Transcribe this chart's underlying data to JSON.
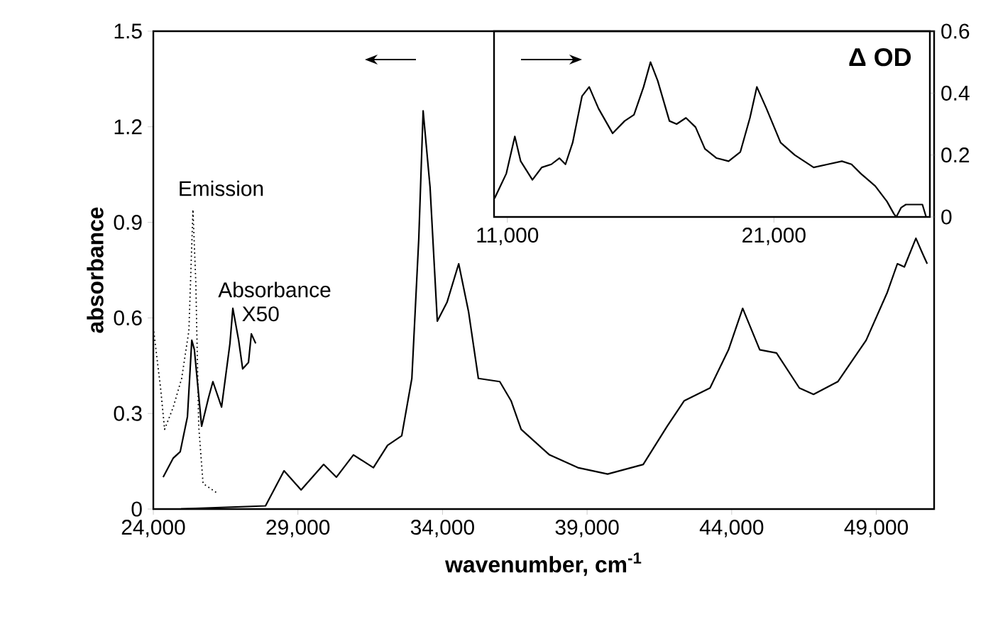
{
  "chart_data": [
    {
      "type": "line",
      "xlabel": "wavenumber, cm$^{-1}$",
      "ylabel": "absorbance",
      "xlim": [
        24000,
        51000
      ],
      "ylim": [
        0,
        1.5
      ],
      "xticks": [
        {
          "value": 24000,
          "label": "24,000"
        },
        {
          "value": 29000,
          "label": "29,000"
        },
        {
          "value": 34000,
          "label": "34,000"
        },
        {
          "value": 39000,
          "label": "39,000"
        },
        {
          "value": 44000,
          "label": "44,000"
        },
        {
          "value": 49000,
          "label": "49,000"
        }
      ],
      "yticks": [
        0,
        0.3,
        0.6,
        0.9,
        1.2,
        1.5
      ],
      "marker": "none",
      "series": [
        {
          "name": "Emission",
          "color": "#000000",
          "line_style": "dotted",
          "x": [
            24000,
            24250,
            24390,
            24690,
            24980,
            25230,
            25370,
            25470,
            25570,
            25720,
            26210
          ],
          "values": [
            0.57,
            0.38,
            0.25,
            0.32,
            0.41,
            0.56,
            0.94,
            0.71,
            0.26,
            0.08,
            0.05
          ]
        },
        {
          "name": "Absorbance X50",
          "color": "#000000",
          "line_style": "solid",
          "x": [
            24340,
            24690,
            24930,
            25180,
            25330,
            25420,
            25670,
            25910,
            26060,
            26360,
            26650,
            26750,
            26950,
            27090,
            27290,
            27390,
            27540
          ],
          "values": [
            0.1,
            0.16,
            0.18,
            0.29,
            0.53,
            0.5,
            0.26,
            0.35,
            0.4,
            0.32,
            0.52,
            0.63,
            0.53,
            0.44,
            0.46,
            0.55,
            0.52
          ]
        },
        {
          "color": "#000000",
          "line_style": "solid",
          "x": [
            24000,
            24830,
            27880,
            28520,
            29110,
            29890,
            30330,
            30920,
            31610,
            32100,
            32590,
            32940,
            33180,
            33330,
            33570,
            33820,
            34160,
            34560,
            34900,
            35240,
            35980,
            36370,
            36720,
            37700,
            38680,
            39710,
            40940,
            41770,
            42360,
            43250,
            43890,
            44380,
            44970,
            45550,
            46340,
            46830,
            47670,
            48650,
            49380,
            49730,
            49970,
            50370,
            50610,
            50760
          ],
          "values": [
            0.0,
            0.0,
            0.01,
            0.12,
            0.06,
            0.14,
            0.1,
            0.17,
            0.13,
            0.2,
            0.23,
            0.41,
            0.85,
            1.25,
            1.01,
            0.59,
            0.65,
            0.77,
            0.62,
            0.41,
            0.4,
            0.34,
            0.25,
            0.17,
            0.13,
            0.11,
            0.14,
            0.26,
            0.34,
            0.38,
            0.5,
            0.63,
            0.5,
            0.49,
            0.38,
            0.36,
            0.4,
            0.53,
            0.68,
            0.77,
            0.76,
            0.85,
            0.8,
            0.77
          ]
        }
      ]
    },
    {
      "type": "line",
      "y2label": "Δ OD",
      "xlim": [
        10500,
        26850
      ],
      "y2lim": [
        0,
        0.6
      ],
      "xticks": [
        {
          "value": 11000,
          "label": "11,000"
        },
        {
          "value": 21000,
          "label": "21,000"
        }
      ],
      "y2ticks": [
        0,
        0.2,
        0.4,
        0.6
      ],
      "marker": "none",
      "series": [
        {
          "color": "#000000",
          "line_style": "solid",
          "axis": "y2",
          "x": [
            10520,
            10960,
            11280,
            11500,
            11940,
            12290,
            12650,
            12950,
            13180,
            13450,
            13800,
            14070,
            14420,
            14950,
            15400,
            15750,
            16110,
            16370,
            16640,
            17080,
            17350,
            17700,
            18060,
            18410,
            18850,
            19300,
            19740,
            20100,
            20360,
            20720,
            21250,
            21780,
            22490,
            23020,
            23550,
            23910,
            24260,
            24800,
            25240,
            25500,
            25590,
            25770,
            25950,
            26570,
            26710
          ],
          "values": [
            0.06,
            0.14,
            0.26,
            0.18,
            0.12,
            0.16,
            0.17,
            0.19,
            0.17,
            0.24,
            0.39,
            0.42,
            0.35,
            0.27,
            0.31,
            0.33,
            0.42,
            0.5,
            0.44,
            0.31,
            0.3,
            0.32,
            0.29,
            0.22,
            0.19,
            0.18,
            0.21,
            0.32,
            0.42,
            0.35,
            0.24,
            0.2,
            0.16,
            0.17,
            0.18,
            0.17,
            0.14,
            0.1,
            0.05,
            0.01,
            0.0,
            0.03,
            0.04,
            0.04,
            0.0
          ]
        }
      ]
    }
  ]
}
